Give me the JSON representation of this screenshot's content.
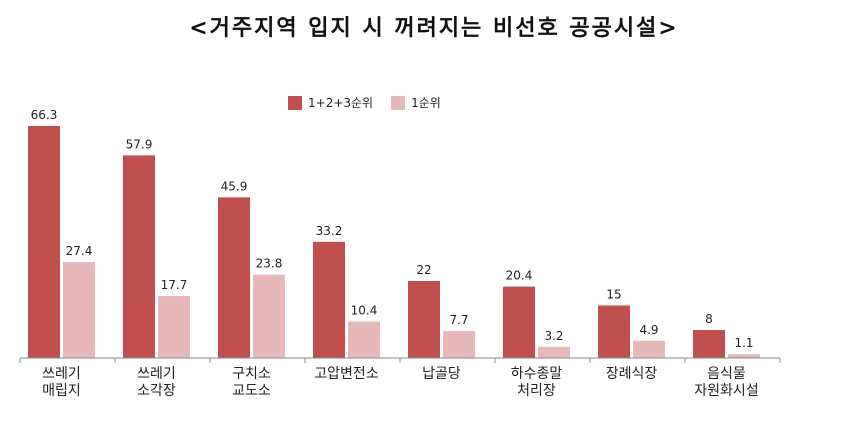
{
  "title": "<거주지역 입지 시 꺼려지는 비선호 공공시설>",
  "colors": {
    "primary": "#c0504d",
    "secondary": "#e6b9b8",
    "axis": "#888888"
  },
  "chart_data": {
    "type": "bar",
    "title": "<거주지역 입지 시 꺼려지는 비선호 공공시설>",
    "legend_position": "top",
    "grid": false,
    "ylim": [
      0,
      70
    ],
    "categories": [
      [
        "쓰레기",
        "매립지"
      ],
      [
        "쓰레기",
        "소각장"
      ],
      [
        "구치소",
        "교도소"
      ],
      [
        "고압변전소"
      ],
      [
        "납골당"
      ],
      [
        "하수종말",
        "처리장"
      ],
      [
        "장례식장"
      ],
      [
        "음식물",
        "자원화시설"
      ]
    ],
    "series": [
      {
        "name": "1+2+3순위",
        "values": [
          66.3,
          57.9,
          45.9,
          33.2,
          22,
          20.4,
          15,
          8
        ]
      },
      {
        "name": "1순위",
        "values": [
          27.4,
          17.7,
          23.8,
          10.4,
          7.7,
          3.2,
          4.9,
          1.1
        ]
      }
    ]
  }
}
